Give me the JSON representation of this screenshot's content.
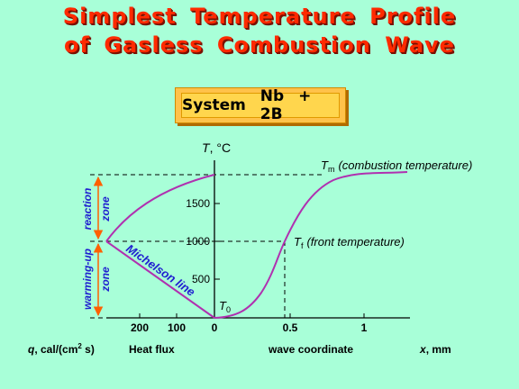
{
  "title": {
    "line1": "Simplest Temperature Profile",
    "line2": "of Gasless Combustion Wave"
  },
  "system": {
    "label": "System",
    "formula": "Nb + 2B"
  },
  "axes": {
    "y_var": "T",
    "y_unit": ", °C",
    "y_ticks": [
      "1500",
      "1000",
      "500"
    ],
    "x_ticks_left": [
      "200",
      "100",
      "0"
    ],
    "x_ticks_right": [
      "0.5",
      "1"
    ],
    "x_var": "x",
    "x_unit": ", mm",
    "q_var": "q",
    "q_unit": ", cal/(cm",
    "q_unit_sup": "2",
    "q_unit_end": " s)",
    "heat_flux": "Heat flux",
    "wave_coord": "wave coordinate"
  },
  "annotations": {
    "tm_sym": "T",
    "tm_sub": "m",
    "tm_desc": "(combustion temperature)",
    "tf_sym": "T",
    "tf_sub": "f",
    "tf_desc": "(front temperature)",
    "t0_sym": "T",
    "t0_sub": "0",
    "michelson": "Michelson line",
    "zone_reaction_1": "reaction",
    "zone_reaction_2": "zone",
    "zone_warming_1": "warming-up",
    "zone_warming_2": "zone"
  },
  "colors": {
    "background": "#a8ffd8",
    "title": "#ff2a00",
    "curve": "#b030b0",
    "arrow": "#ff6000",
    "zone_text": "#2020d0"
  },
  "chart_data": {
    "type": "line",
    "series": [
      {
        "values_x_mm": [
          0,
          0.1,
          0.2,
          0.3,
          0.4,
          0.48,
          0.55,
          0.65,
          0.75,
          0.85,
          1.0,
          1.25
        ],
        "values_T_C": [
          0,
          20,
          80,
          320,
          700,
          1000,
          1280,
          1580,
          1750,
          1830,
          1880,
          1900
        ]
      }
    ],
    "ylim": [
      0,
      2000
    ],
    "xlim_mm": [
      0,
      1.3
    ],
    "markers_T_C": {
      "T_f": 1000,
      "T_m": 1900,
      "T_0": 0
    }
  }
}
